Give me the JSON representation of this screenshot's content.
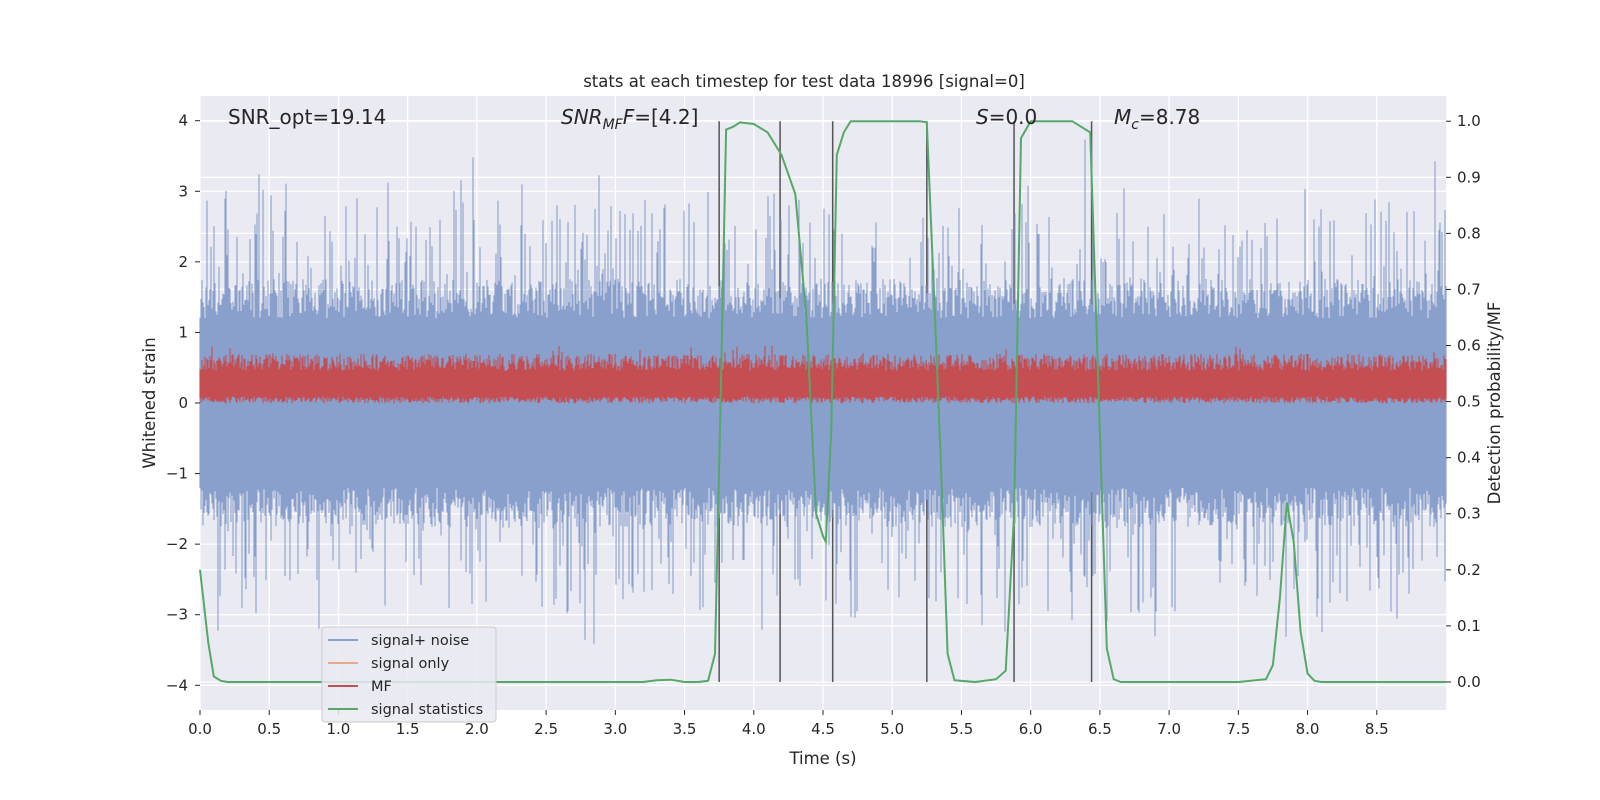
{
  "chart_data": {
    "type": "line",
    "title": "stats at each timestep for test data 18996 [signal=0]",
    "xlabel": "Time (s)",
    "ylabel": "Whitened strain",
    "ylabel_right": "Detection probability/MF",
    "xlim": [
      0.0,
      9.0
    ],
    "ylim": [
      -4.35,
      4.35
    ],
    "ylim_right": [
      -0.05,
      1.045
    ],
    "x_ticks": [
      0.0,
      0.5,
      1.0,
      1.5,
      2.0,
      2.5,
      3.0,
      3.5,
      4.0,
      4.5,
      5.0,
      5.5,
      6.0,
      6.5,
      7.0,
      7.5,
      8.0,
      8.5
    ],
    "x_tick_labels": [
      "0.0",
      "0.5",
      "1.0",
      "1.5",
      "2.0",
      "2.5",
      "3.0",
      "3.5",
      "4.0",
      "4.5",
      "5.0",
      "5.5",
      "6.0",
      "6.5",
      "7.0",
      "7.5",
      "8.0",
      "8.5"
    ],
    "y_ticks": [
      -4,
      -3,
      -2,
      -1,
      0,
      1,
      2,
      3,
      4
    ],
    "y_tick_labels": [
      "−4",
      "−3",
      "−2",
      "−1",
      "0",
      "1",
      "2",
      "3",
      "4"
    ],
    "y_ticks_right": [
      0.0,
      0.1,
      0.2,
      0.3,
      0.4,
      0.5,
      0.6,
      0.7,
      0.8,
      0.9,
      1.0
    ],
    "y_tick_labels_right": [
      "0.0",
      "0.1",
      "0.2",
      "0.3",
      "0.4",
      "0.5",
      "0.6",
      "0.7",
      "0.8",
      "0.9",
      "1.0"
    ],
    "grid": true,
    "legend_position": "lower-left",
    "legend": [
      {
        "label": "signal+ noise",
        "color": "#8aa0cc"
      },
      {
        "label": "signal only",
        "color": "#e8a98a"
      },
      {
        "label": "MF",
        "color": "#c44e52"
      },
      {
        "label": "signal statistics",
        "color": "#55a868"
      }
    ],
    "annotations": {
      "snr_opt": "SNR_opt=19.14",
      "snr_mf_italic": "SNR",
      "snr_mf_sub": "MF",
      "snr_mf_value": "=[4.2]",
      "s_italic": "S",
      "s_value": "=0.0",
      "mc_italic": "M",
      "mc_sub": "c",
      "mc_value": "=8.78"
    },
    "vertical_lines_s": [
      3.75,
      4.19,
      4.57,
      5.25,
      5.88,
      6.44
    ],
    "series": [
      {
        "name": "signal+ noise",
        "style": "dense noise trace",
        "typical_range": [
          -1.6,
          1.6
        ],
        "max_excursion": [
          -3.45,
          3.78
        ],
        "color": "#8aa0cc"
      },
      {
        "name": "MF",
        "style": "dense trace, right axis",
        "typical_range": [
          0.5,
          0.57
        ],
        "peak": 0.6,
        "color": "#c44e52"
      },
      {
        "name": "signal statistics",
        "axis": "right",
        "color": "#55a868",
        "x": [
          0.0,
          0.06,
          0.1,
          0.15,
          0.2,
          0.5,
          1.0,
          1.5,
          2.0,
          2.5,
          3.0,
          3.2,
          3.3,
          3.4,
          3.5,
          3.6,
          3.67,
          3.72,
          3.76,
          3.8,
          3.85,
          3.9,
          4.0,
          4.1,
          4.2,
          4.3,
          4.38,
          4.45,
          4.5,
          4.52,
          4.56,
          4.6,
          4.65,
          4.7,
          4.8,
          5.0,
          5.2,
          5.25,
          5.3,
          5.35,
          5.4,
          5.45,
          5.6,
          5.75,
          5.82,
          5.88,
          5.93,
          6.0,
          6.1,
          6.3,
          6.43,
          6.48,
          6.55,
          6.6,
          6.65,
          6.75,
          7.0,
          7.5,
          7.7,
          7.75,
          7.8,
          7.85,
          7.9,
          7.95,
          8.0,
          8.05,
          8.1,
          8.5,
          9.0
        ],
        "y": [
          0.2,
          0.07,
          0.01,
          0.002,
          0.0,
          0.0,
          0.0,
          0.0,
          0.0,
          0.0,
          0.0,
          0.0,
          0.003,
          0.004,
          0.0,
          0.0,
          0.002,
          0.05,
          0.5,
          0.985,
          0.99,
          0.998,
          0.995,
          0.98,
          0.94,
          0.87,
          0.65,
          0.3,
          0.26,
          0.25,
          0.45,
          0.94,
          0.98,
          1.0,
          1.0,
          1.0,
          1.0,
          0.998,
          0.7,
          0.4,
          0.05,
          0.003,
          0.0,
          0.005,
          0.02,
          0.3,
          0.97,
          1.0,
          1.0,
          1.0,
          0.98,
          0.6,
          0.06,
          0.005,
          0.0,
          0.0,
          0.0,
          0.0,
          0.005,
          0.03,
          0.15,
          0.32,
          0.25,
          0.09,
          0.015,
          0.002,
          0.0,
          0.0,
          0.0
        ]
      }
    ]
  }
}
